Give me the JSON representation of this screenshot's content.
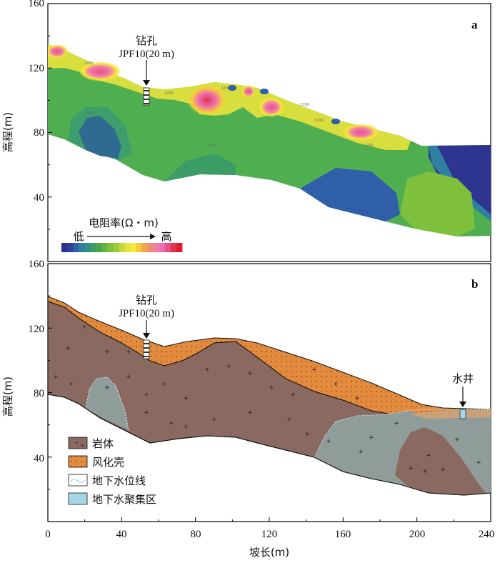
{
  "panel_a": {
    "letter": "a",
    "y_axis_label": "高程(m)",
    "y_ticks": [
      "40",
      "80",
      "120",
      "160"
    ],
    "borehole_label": "钻孔",
    "borehole_id": "JPF10(20 m)",
    "colorbar": {
      "title": "电阻率(Ω・m)",
      "low": "低",
      "high": "高",
      "colors": [
        "#2b2f8f",
        "#2f3e9e",
        "#2f5fa8",
        "#2f7fa0",
        "#2f8f86",
        "#3b9c66",
        "#4aa54a",
        "#63b341",
        "#7fc03c",
        "#9ccc38",
        "#c3d83a",
        "#e6e33c",
        "#f6e83a",
        "#f6c83c",
        "#f3a64a",
        "#f08d7a",
        "#f07fa6",
        "#ee6fb0",
        "#e8508c",
        "#e3324e",
        "#dc1d2d"
      ]
    },
    "contour_labels": [
      "1700",
      "1700",
      "1700",
      "1700",
      "1700",
      "1700",
      "1000",
      "1700"
    ]
  },
  "panel_b": {
    "letter": "b",
    "y_axis_label": "高程(m)",
    "y_ticks": [
      "40",
      "80",
      "120",
      "160"
    ],
    "borehole_label": "钻孔",
    "borehole_id": "JPF10(20 m)",
    "well_label": "水井",
    "legend": [
      {
        "label": "岩体",
        "color": "#8a6a60",
        "icon": "rock-mass-swatch"
      },
      {
        "label": "风化壳",
        "color": "#e38a3c",
        "icon": "weathered-crust-swatch"
      },
      {
        "label": "地下水位线",
        "color": "#ffffff",
        "icon": "water-table-line-swatch"
      },
      {
        "label": "地下水聚集区",
        "color": "#a6d6e8",
        "icon": "groundwater-zone-swatch"
      }
    ]
  },
  "x_axis": {
    "label": "坡长(m)",
    "ticks": [
      "0",
      "40",
      "80",
      "120",
      "160",
      "200",
      "240"
    ]
  }
}
